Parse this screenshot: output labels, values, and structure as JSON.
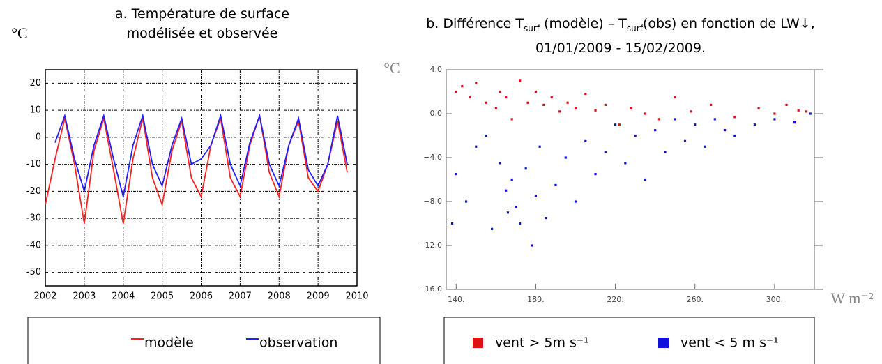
{
  "chart_data": [
    {
      "type": "line",
      "title": [
        "a. Température de surface",
        "modélisée et observée"
      ],
      "ylabel": "°C",
      "x": [
        2002,
        2002.25,
        2002.5,
        2002.75,
        2003,
        2003.25,
        2003.5,
        2003.75,
        2004,
        2004.25,
        2004.5,
        2004.75,
        2005,
        2005.25,
        2005.5,
        2005.75,
        2006,
        2006.25,
        2006.5,
        2006.75,
        2007,
        2007.25,
        2007.5,
        2007.75,
        2008,
        2008.25,
        2008.5,
        2008.75,
        2009,
        2009.25,
        2009.5,
        2009.75
      ],
      "series": [
        {
          "name": "modèle",
          "color": "#ff2020",
          "values": [
            -25,
            -8,
            7,
            -10,
            -32,
            -5,
            7,
            -12,
            -32,
            -8,
            7,
            -15,
            -25,
            -5,
            6,
            -15,
            -22,
            -3,
            7,
            -15,
            -22,
            -3,
            8,
            -13,
            -22,
            -3,
            6,
            -15,
            -20,
            -10,
            6,
            -13
          ]
        },
        {
          "name": "observation",
          "color": "#2020ff",
          "values": [
            null,
            -2,
            8,
            -8,
            -20,
            -3,
            8,
            -8,
            -22,
            -3,
            8,
            -10,
            -18,
            -3,
            7,
            -10,
            -8,
            -3,
            8,
            -10,
            -18,
            -2,
            8,
            -10,
            -18,
            -3,
            7,
            -12,
            -18,
            -10,
            8,
            -10
          ]
        }
      ],
      "xlim": [
        2002,
        2010
      ],
      "xticks": [
        2002,
        2003,
        2004,
        2005,
        2006,
        2007,
        2008,
        2009,
        2010
      ],
      "ylim": [
        -55,
        25
      ],
      "yticks": [
        -50,
        -40,
        -30,
        -20,
        -10,
        0,
        10,
        20
      ],
      "grid": true
    },
    {
      "type": "scatter",
      "title": [
        "b. Différence T",
        "surf",
        " (modèle) – T",
        "surf",
        "(obs) en fonction de LW↓, 01/01/2009 - 15/02/2009."
      ],
      "ylabel": "°C",
      "xlabel": "W m⁻²",
      "series": [
        {
          "name": "vent > 5m s⁻¹",
          "color": "#dd1111",
          "x": [
            140,
            143,
            147,
            150,
            155,
            160,
            162,
            165,
            168,
            172,
            176,
            180,
            184,
            188,
            192,
            196,
            200,
            205,
            210,
            215,
            222,
            228,
            235,
            242,
            250,
            258,
            268,
            280,
            292,
            300,
            306,
            312,
            316
          ],
          "values": [
            2.0,
            2.5,
            1.5,
            2.8,
            1.0,
            0.5,
            2.0,
            1.5,
            -0.5,
            3.0,
            1.0,
            2.0,
            0.8,
            1.5,
            0.2,
            1.0,
            0.5,
            1.8,
            0.3,
            0.8,
            -1.0,
            0.5,
            0.0,
            -0.5,
            1.5,
            0.2,
            0.8,
            -0.3,
            0.5,
            0.0,
            0.8,
            0.3,
            0.2
          ]
        },
        {
          "name": "vent < 5 m s⁻¹",
          "color": "#1111dd",
          "x": [
            138,
            140,
            145,
            150,
            155,
            158,
            162,
            165,
            166,
            168,
            170,
            172,
            175,
            178,
            180,
            182,
            185,
            190,
            195,
            200,
            205,
            210,
            215,
            220,
            225,
            230,
            235,
            240,
            245,
            250,
            255,
            260,
            265,
            270,
            275,
            280,
            290,
            300,
            310,
            318
          ],
          "values": [
            -10,
            -5.5,
            -8,
            -3,
            -2,
            -10.5,
            -4.5,
            -7,
            -9,
            -6,
            -8.5,
            -10,
            -5,
            -12,
            -7.5,
            -3,
            -9.5,
            -6.5,
            -4,
            -8,
            -2.5,
            -5.5,
            -3.5,
            -1,
            -4.5,
            -2,
            -6,
            -1.5,
            -3.5,
            -0.5,
            -2.5,
            -1,
            -3,
            -0.5,
            -1.5,
            -2,
            -1,
            -0.5,
            -0.8,
            0
          ]
        }
      ],
      "xlim": [
        135,
        320
      ],
      "xticks": [
        {
          "value": 140,
          "label": "140."
        },
        {
          "value": 180,
          "label": "180."
        },
        {
          "value": 220,
          "label": "220."
        },
        {
          "value": 260,
          "label": "260."
        },
        {
          "value": 300,
          "label": "300."
        }
      ],
      "ylim": [
        -16,
        4
      ],
      "yticks": [
        {
          "value": 4,
          "label": "4.0"
        },
        {
          "value": 0,
          "label": "0.0"
        },
        {
          "value": -4,
          "label": "−4.0"
        },
        {
          "value": -8,
          "label": "−8.0"
        },
        {
          "value": -12,
          "label": "−12.0"
        },
        {
          "value": -16,
          "label": "−16.0"
        }
      ],
      "grid": false
    }
  ]
}
